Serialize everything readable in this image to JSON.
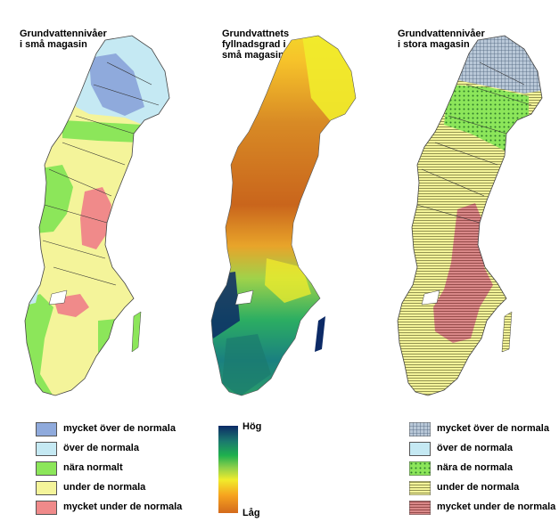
{
  "panels": [
    {
      "title": "Grundvattennivåer\ni små magasin"
    },
    {
      "title": "Grundvattnets\nfyllnadsgrad i\nsmå magasin"
    },
    {
      "title": "Grundvattennivåer\ni stora magasin"
    }
  ],
  "legend_small": [
    {
      "label": "mycket över de normala",
      "color": "#8faadc"
    },
    {
      "label": "över de normala",
      "color": "#c5e9f3"
    },
    {
      "label": "nära normalt",
      "color": "#8ce65a"
    },
    {
      "label": "under de normala",
      "color": "#f4f49a"
    },
    {
      "label": "mycket under de normala",
      "color": "#f08a8a"
    }
  ],
  "fill_scale": {
    "high_label": "Hög",
    "low_label": "Låg",
    "colors": [
      "#0c2a66",
      "#1fb14e",
      "#f1ec2b",
      "#d36a1c"
    ]
  },
  "legend_large": [
    {
      "label": "mycket över de normala",
      "color": "#9fb4cc",
      "pattern": "grid"
    },
    {
      "label": "över de normala",
      "color": "#c5e9f3",
      "pattern": "none"
    },
    {
      "label": "nära de normala",
      "color": "#8ce65a",
      "pattern": "dots"
    },
    {
      "label": "under de normala",
      "color": "#f4f49a",
      "pattern": "hlines"
    },
    {
      "label": "mycket under de normala",
      "color": "#d98888",
      "pattern": "hlines"
    }
  ]
}
